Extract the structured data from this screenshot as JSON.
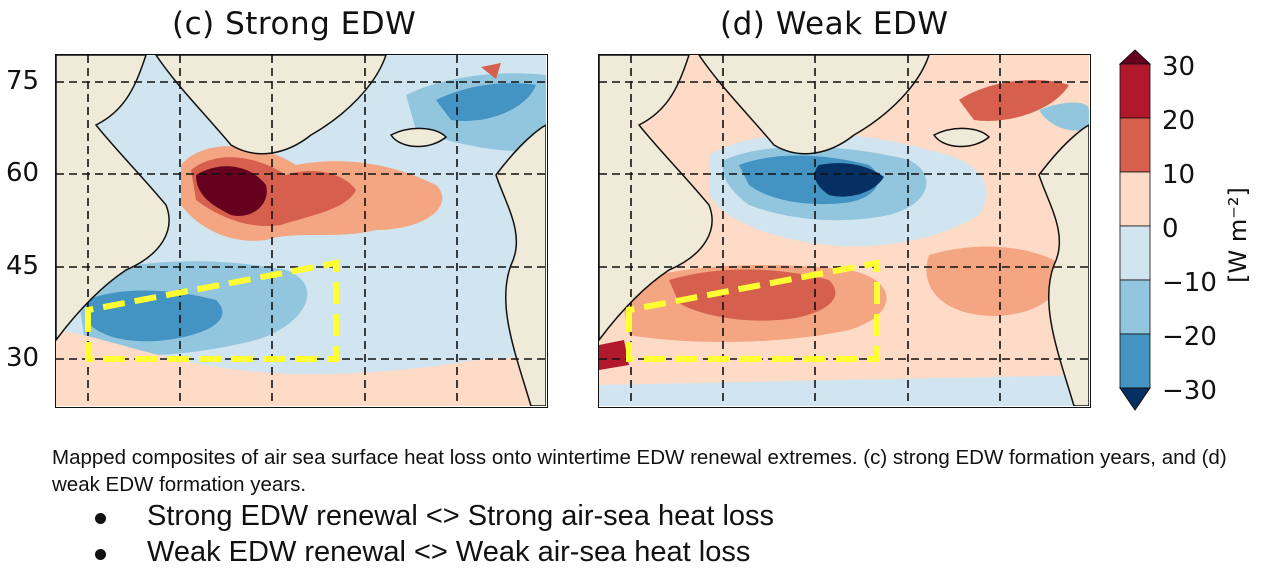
{
  "chart_data": [
    {
      "type": "heatmap",
      "panel_title": "(c) Strong EDW",
      "lat_ticks": [
        "75",
        "60",
        "45",
        "30"
      ],
      "box_label": "",
      "field_pattern": {
        "positive_blob": {
          "lon": -50,
          "lat": 55,
          "value": 30
        },
        "positive_tail": {
          "lon": -30,
          "lat": 55,
          "value": 15
        },
        "negative_subtropics": {
          "lon": -55,
          "lat": 36,
          "value": -15
        },
        "negative_nordic": {
          "lon": -5,
          "lat": 70,
          "value": -15
        }
      }
    },
    {
      "type": "heatmap",
      "panel_title": "(d) Weak EDW",
      "lat_ticks": [
        "75",
        "60",
        "45",
        "30"
      ],
      "box_label": "",
      "field_pattern": {
        "negative_blob": {
          "lon": -35,
          "lat": 58,
          "value": -30
        },
        "positive_band": {
          "lon": -45,
          "lat": 38,
          "value": 20
        },
        "positive_nordic": {
          "lon": -5,
          "lat": 72,
          "value": 20
        }
      }
    }
  ],
  "colorbar": {
    "ticks": [
      "30",
      "20",
      "10",
      "0",
      "−10",
      "−20",
      "−30"
    ],
    "label": "[W m⁻²]",
    "colors": [
      "#67001f",
      "#d6604d",
      "#f4a582",
      "#fddbc7",
      "#d1e5f0",
      "#92c5de",
      "#4393c3",
      "#2166ac",
      "#053061"
    ]
  },
  "caption": "Mapped composites of air sea surface heat loss onto wintertime EDW renewal extremes. (c) strong EDW formation years, and (d) weak EDW formation years.",
  "bullets": [
    "Strong EDW renewal <> Strong air-sea heat loss",
    "Weak EDW renewal <> Weak air-sea heat loss"
  ],
  "colors": {
    "land": "#efebd8",
    "box": "#ffff33",
    "grid": "#111111"
  }
}
